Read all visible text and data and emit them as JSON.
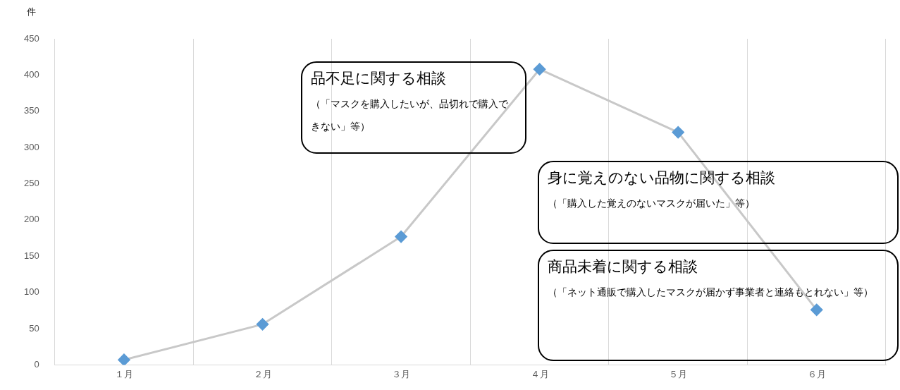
{
  "chart_data": {
    "type": "line",
    "ylabel": "件",
    "categories": [
      "１月",
      "２月",
      "３月",
      "４月",
      "５月",
      "６月"
    ],
    "series": [
      {
        "color": "#5b9bd5",
        "values": [
          7,
          56,
          177,
          408,
          321,
          76
        ]
      }
    ],
    "ylim": [
      0,
      450
    ],
    "yticks": [
      0,
      50,
      100,
      150,
      200,
      250,
      300,
      350,
      400,
      450
    ],
    "grid": "x",
    "legend": false,
    "marker": "diamond",
    "line_style": "solid",
    "annotations": [
      "品不足に関する相談",
      "（「マスクを購入したいが、品切れで購入できない」等）",
      "身に覚えのない品物に関する相談",
      "（「購入した覚えのないマスクが届いた」等）",
      "商品未着に関する相談",
      "（「ネット通販で購入したマスクが届かず事業者と連絡もとれない」等）"
    ]
  }
}
